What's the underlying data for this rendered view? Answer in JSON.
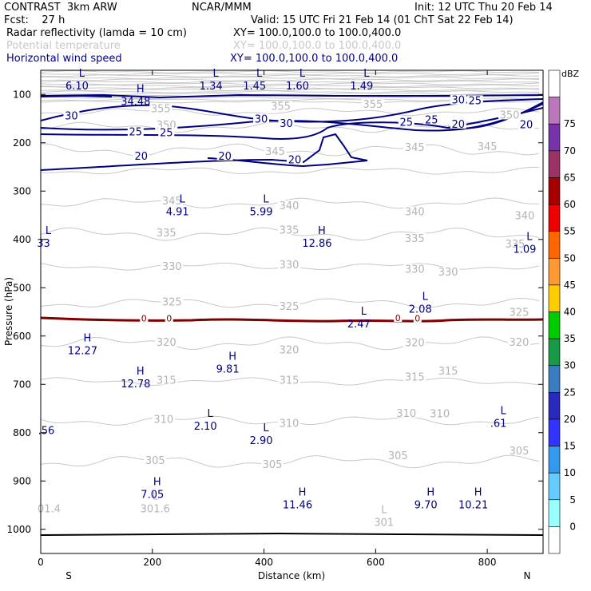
{
  "header": {
    "model": "CONTRAST  3km ARW",
    "org": "NCAR/MMM",
    "init": "Init: 12 UTC Thu 20 Feb 14",
    "fcst": "Fcst:    27 h",
    "valid": "Valid: 15 UTC Fri 21 Feb 14 (01 ChT Sat 22 Feb 14)",
    "fields": [
      {
        "name": "Radar reflectivity (lamda = 10 cm)",
        "xy": "XY= 100.0,100.0 to 100.0,400.0",
        "color": "#000000"
      },
      {
        "name": "Potential temperature",
        "xy": "XY= 100.0,100.0 to 100.0,400.0",
        "color": "#c8c8c8"
      },
      {
        "name": "Horizontal wind speed",
        "xy": "XY= 100.0,100.0 to 100.0,400.0",
        "color": "#000080"
      }
    ]
  },
  "chart_data": {
    "type": "contour",
    "xlabel": "Distance (km)",
    "ylabel": "Pressure (hPa)",
    "xlim": [
      0,
      900
    ],
    "ylim": [
      1050,
      50
    ],
    "xticks": [
      0,
      200,
      400,
      600,
      800
    ],
    "yticks": [
      100,
      200,
      300,
      400,
      500,
      600,
      700,
      800,
      900,
      1000
    ],
    "x_end_labels": {
      "left": "S",
      "right": "N"
    },
    "colorbar": {
      "unit": "dBZ",
      "levels": [
        "0",
        "5",
        "10",
        "15",
        "20",
        "25",
        "30",
        "35",
        "40",
        "45",
        "50",
        "55",
        "60",
        "65",
        "70",
        "75"
      ],
      "colors": [
        "#ffffff",
        "#99ffff",
        "#66ccff",
        "#3399ee",
        "#3333ff",
        "#2929bd",
        "#3a7cc0",
        "#179945",
        "#00cc00",
        "#ffcc00",
        "#ff9933",
        "#ff6600",
        "#ee0000",
        "#a80000",
        "#993366",
        "#7733aa",
        "#bb77bb",
        "#ffffff"
      ]
    },
    "theta_contour_labels": [
      {
        "x": 215,
        "p": 132,
        "text": "355"
      },
      {
        "x": 430,
        "p": 127,
        "text": "355"
      },
      {
        "x": 595,
        "p": 123,
        "text": "355"
      },
      {
        "x": 225,
        "p": 166,
        "text": "350"
      },
      {
        "x": 840,
        "p": 145,
        "text": "350"
      },
      {
        "x": 420,
        "p": 220,
        "text": "345"
      },
      {
        "x": 670,
        "p": 212,
        "text": "345"
      },
      {
        "x": 800,
        "p": 210,
        "text": "345"
      },
      {
        "x": 235,
        "p": 323,
        "text": "345"
      },
      {
        "x": 445,
        "p": 333,
        "text": "340"
      },
      {
        "x": 670,
        "p": 345,
        "text": "340"
      },
      {
        "x": 867,
        "p": 353,
        "text": "340"
      },
      {
        "x": 225,
        "p": 389,
        "text": "335"
      },
      {
        "x": 445,
        "p": 383,
        "text": "335"
      },
      {
        "x": 670,
        "p": 400,
        "text": "335"
      },
      {
        "x": 850,
        "p": 412,
        "text": "335"
      },
      {
        "x": 235,
        "p": 458,
        "text": "330"
      },
      {
        "x": 445,
        "p": 455,
        "text": "330"
      },
      {
        "x": 670,
        "p": 464,
        "text": "330"
      },
      {
        "x": 730,
        "p": 470,
        "text": "330"
      },
      {
        "x": 235,
        "p": 532,
        "text": "325"
      },
      {
        "x": 445,
        "p": 541,
        "text": "325"
      },
      {
        "x": 857,
        "p": 553,
        "text": "325"
      },
      {
        "x": 225,
        "p": 615,
        "text": "320"
      },
      {
        "x": 445,
        "p": 631,
        "text": "320"
      },
      {
        "x": 670,
        "p": 616,
        "text": "320"
      },
      {
        "x": 857,
        "p": 615,
        "text": "320"
      },
      {
        "x": 225,
        "p": 694,
        "text": "315"
      },
      {
        "x": 445,
        "p": 694,
        "text": "315"
      },
      {
        "x": 670,
        "p": 687,
        "text": "315"
      },
      {
        "x": 730,
        "p": 675,
        "text": "315"
      },
      {
        "x": 220,
        "p": 775,
        "text": "310"
      },
      {
        "x": 445,
        "p": 783,
        "text": "310"
      },
      {
        "x": 655,
        "p": 762,
        "text": "310"
      },
      {
        "x": 715,
        "p": 763,
        "text": "310"
      },
      {
        "x": 205,
        "p": 860,
        "text": "305"
      },
      {
        "x": 415,
        "p": 868,
        "text": "305"
      },
      {
        "x": 640,
        "p": 850,
        "text": "305"
      },
      {
        "x": 857,
        "p": 840,
        "text": "305"
      }
    ],
    "theta_extrema": [
      {
        "x": 205,
        "p": 955,
        "kind": "L",
        "value": "301.6"
      },
      {
        "x": 615,
        "p": 983,
        "kind": "L",
        "value": "301"
      },
      {
        "x": 15,
        "p": 955,
        "kind": "",
        "value": "01.4"
      }
    ],
    "wind_contour_labels": [
      {
        "x": 55,
        "p": 147,
        "text": "30"
      },
      {
        "x": 395,
        "p": 153,
        "text": "30"
      },
      {
        "x": 440,
        "p": 162,
        "text": "30"
      },
      {
        "x": 748,
        "p": 114,
        "text": "30"
      },
      {
        "x": 778,
        "p": 115,
        "text": "25"
      },
      {
        "x": 655,
        "p": 160,
        "text": "25"
      },
      {
        "x": 700,
        "p": 155,
        "text": "25"
      },
      {
        "x": 170,
        "p": 180,
        "text": "25"
      },
      {
        "x": 225,
        "p": 181,
        "text": "25"
      },
      {
        "x": 748,
        "p": 164,
        "text": "20"
      },
      {
        "x": 870,
        "p": 165,
        "text": "20"
      },
      {
        "x": 180,
        "p": 230,
        "text": "20"
      },
      {
        "x": 330,
        "p": 230,
        "text": "20"
      },
      {
        "x": 455,
        "p": 238,
        "text": "20"
      }
    ],
    "wind_extrema": [
      {
        "x": 65,
        "p": 80,
        "kind": "L",
        "value": "6.10"
      },
      {
        "x": 170,
        "p": 112,
        "kind": "H",
        "value": "34.48"
      },
      {
        "x": 305,
        "p": 80,
        "kind": "L",
        "value": "1.34"
      },
      {
        "x": 383,
        "p": 80,
        "kind": "L",
        "value": "1.45"
      },
      {
        "x": 460,
        "p": 80,
        "kind": "L",
        "value": "1.60"
      },
      {
        "x": 575,
        "p": 80,
        "kind": "L",
        "value": "1.49"
      },
      {
        "x": 245,
        "p": 340,
        "kind": "L",
        "value": "4.91"
      },
      {
        "x": 395,
        "p": 340,
        "kind": "L",
        "value": "5.99"
      },
      {
        "x": 495,
        "p": 405,
        "kind": "H",
        "value": "12.86"
      },
      {
        "x": 5,
        "p": 405,
        "kind": "L",
        "value": "33"
      },
      {
        "x": 867,
        "p": 418,
        "kind": "L",
        "value": "1.09"
      },
      {
        "x": 680,
        "p": 542,
        "kind": "L",
        "value": "2.08"
      },
      {
        "x": 570,
        "p": 572,
        "kind": "L",
        "value": "2.47"
      },
      {
        "x": 75,
        "p": 628,
        "kind": "H",
        "value": "12.27"
      },
      {
        "x": 335,
        "p": 666,
        "kind": "H",
        "value": "9.81"
      },
      {
        "x": 170,
        "p": 696,
        "kind": "H",
        "value": "12.78"
      },
      {
        "x": 820,
        "p": 778,
        "kind": "L",
        "value": ".61"
      },
      {
        "x": 295,
        "p": 784,
        "kind": "L",
        "value": "2.10"
      },
      {
        "x": 395,
        "p": 814,
        "kind": "L",
        "value": "2.90"
      },
      {
        "x": 10,
        "p": 793,
        "kind": "",
        "value": ".56"
      },
      {
        "x": 200,
        "p": 925,
        "kind": "H",
        "value": "7.05"
      },
      {
        "x": 460,
        "p": 947,
        "kind": "H",
        "value": "11.46"
      },
      {
        "x": 690,
        "p": 947,
        "kind": "H",
        "value": "9.70"
      },
      {
        "x": 775,
        "p": 947,
        "kind": "H",
        "value": "10.21"
      }
    ],
    "reflectivity_zero_labels": [
      {
        "x": 185,
        "p": 565,
        "text": "0"
      },
      {
        "x": 230,
        "p": 565,
        "text": "0"
      },
      {
        "x": 640,
        "p": 564,
        "text": "0"
      },
      {
        "x": 675,
        "p": 565,
        "text": "0"
      }
    ]
  }
}
